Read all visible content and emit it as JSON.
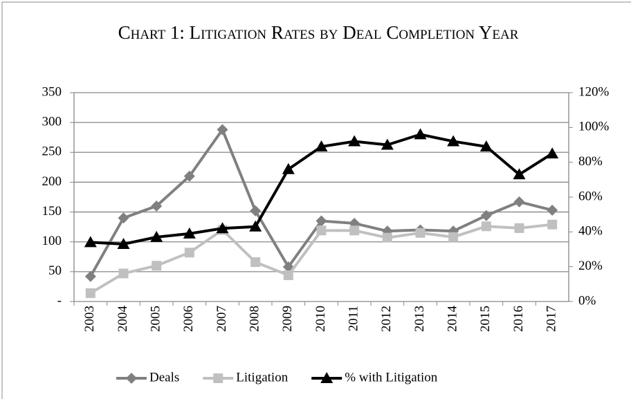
{
  "chart_data": {
    "type": "line",
    "title": "Chart 1: Litigation Rates by Deal Completion Year",
    "categories": [
      "2003",
      "2004",
      "2005",
      "2006",
      "2007",
      "2008",
      "2009",
      "2010",
      "2011",
      "2012",
      "2013",
      "2014",
      "2015",
      "2016",
      "2017"
    ],
    "series": [
      {
        "name": "Deals",
        "color": "#808080",
        "marker": "diamond",
        "values": [
          42,
          140,
          160,
          210,
          288,
          152,
          58,
          135,
          131,
          118,
          120,
          118,
          144,
          167,
          153
        ]
      },
      {
        "name": "Litigation",
        "color": "#c0c0c0",
        "marker": "square",
        "values": [
          14,
          47,
          60,
          82,
          120,
          66,
          44,
          119,
          119,
          107,
          115,
          108,
          126,
          123,
          129
        ]
      },
      {
        "name": "% with Litigation",
        "color": "#000000",
        "marker": "triangle",
        "axis": "y2",
        "values": [
          34,
          33,
          37,
          39,
          42,
          43,
          76,
          89,
          92,
          90,
          96,
          92,
          89,
          73,
          85
        ]
      }
    ],
    "ylim": [
      0,
      350
    ],
    "yticks": [
      {
        "value": 0,
        "label": "-"
      },
      50,
      100,
      150,
      200,
      250,
      300,
      350
    ],
    "y2lim": [
      0,
      120
    ],
    "y2ticks": [
      {
        "value": 0,
        "label": "0%"
      },
      {
        "value": 20,
        "label": "20%"
      },
      {
        "value": 40,
        "label": "40%"
      },
      {
        "value": 60,
        "label": "60%"
      },
      {
        "value": 80,
        "label": "80%"
      },
      {
        "value": 100,
        "label": "100%"
      },
      {
        "value": 120,
        "label": "120%"
      }
    ],
    "grid": true,
    "legend": "bottom"
  }
}
